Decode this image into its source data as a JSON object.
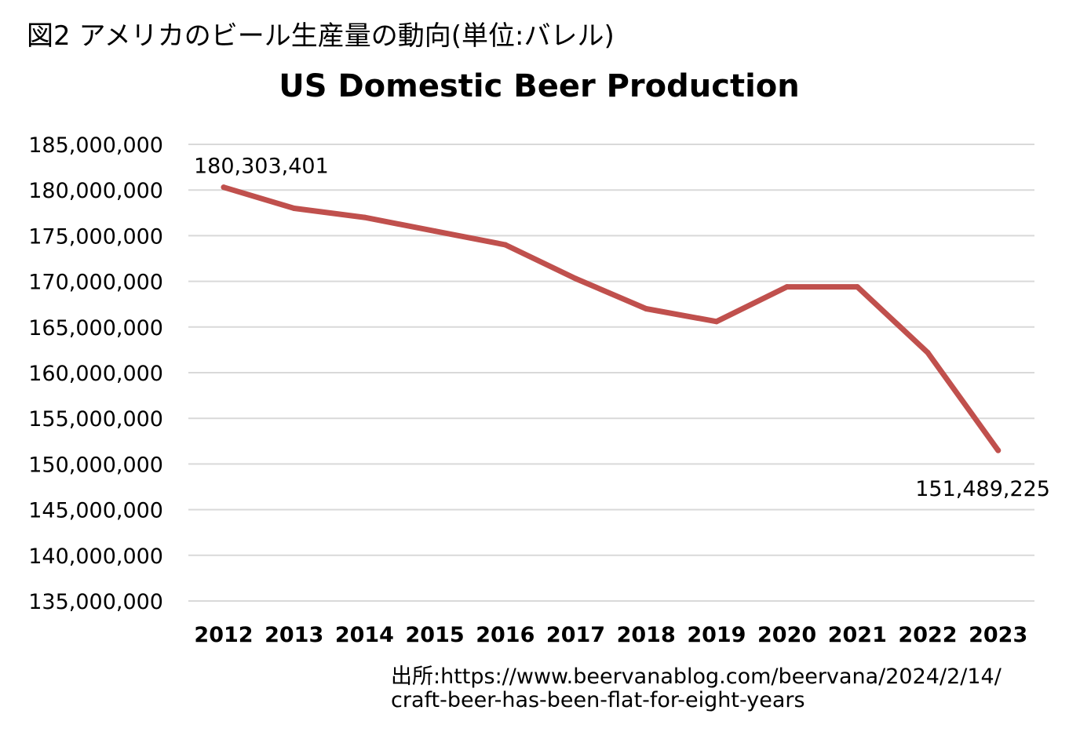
{
  "figure_heading": "図2 アメリカのビール生産量の動向(単位:バレル)",
  "source": {
    "line1": "出所:https://www.beervanablog.com/beervana/2024/2/14/",
    "line2": "craft-beer-has-been-flat-for-eight-years"
  },
  "chart_data": {
    "type": "line",
    "title": "US Domestic Beer Production",
    "xlabel": "",
    "ylabel": "",
    "categories": [
      "2012",
      "2013",
      "2014",
      "2015",
      "2016",
      "2017",
      "2018",
      "2019",
      "2020",
      "2021",
      "2022",
      "2023"
    ],
    "series": [
      {
        "values": [
          180303401,
          178000000,
          177000000,
          175500000,
          174000000,
          170300000,
          167000000,
          165600000,
          169400000,
          169400000,
          162200000,
          151489225
        ]
      }
    ],
    "ylim": [
      135000000,
      185000000
    ],
    "yticks": [
      135000000,
      140000000,
      145000000,
      150000000,
      155000000,
      160000000,
      165000000,
      170000000,
      175000000,
      180000000,
      185000000
    ],
    "ytick_labels": [
      "135,000,000",
      "140,000,000",
      "145,000,000",
      "150,000,000",
      "155,000,000",
      "160,000,000",
      "165,000,000",
      "170,000,000",
      "175,000,000",
      "180,000,000",
      "185,000,000"
    ],
    "data_labels": [
      {
        "index": 0,
        "text": "180,303,401"
      },
      {
        "index": 11,
        "text": "151,489,225"
      }
    ],
    "grid": true,
    "legend": "none",
    "line_color": "#c0504d",
    "grid_color": "#d9d9d9"
  }
}
